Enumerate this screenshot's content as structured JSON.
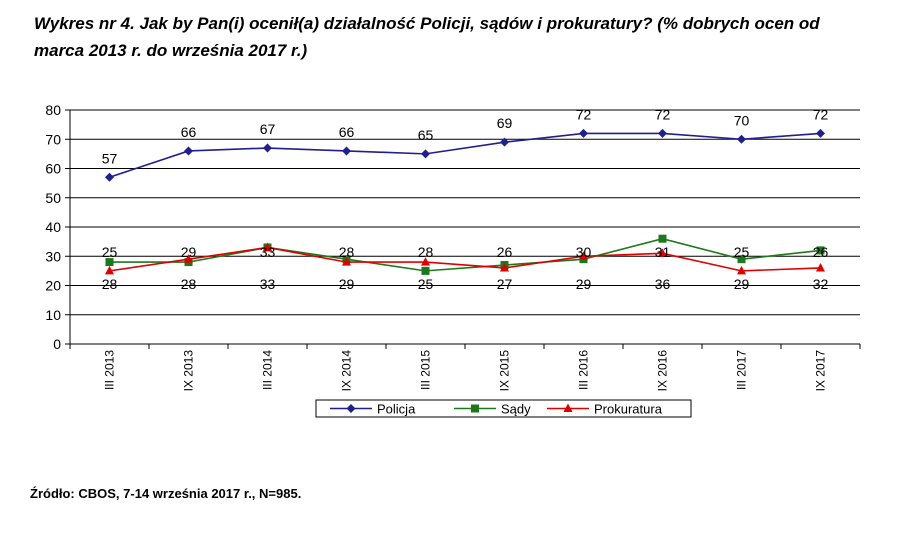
{
  "title": "Wykres nr 4. Jak by Pan(i) ocenił(a) działalność Policji, sądów i prokuratury? (% dobrych ocen od marca 2013  r. do września 2017 r.)",
  "source": "Źródło: CBOS, 7-14 września 2017 r., N=985.",
  "chart_data": {
    "type": "line",
    "categories": [
      "III 2013",
      "IX 2013",
      "III 2014",
      "IX 2014",
      "III 2015",
      "IX 2015",
      "III 2016",
      "IX 2016",
      "III 2017",
      "IX 2017"
    ],
    "ylim": [
      0,
      80
    ],
    "yticks": [
      0,
      10,
      20,
      30,
      40,
      50,
      60,
      70,
      80
    ],
    "grid": true,
    "legend_position": "bottom",
    "series": [
      {
        "name": "Policja",
        "color": "#1f1f8f",
        "marker": "diamond",
        "values": [
          57,
          66,
          67,
          66,
          65,
          69,
          72,
          72,
          70,
          72
        ]
      },
      {
        "name": "Sądy",
        "color": "#1a7a1a",
        "marker": "square",
        "values": [
          28,
          28,
          33,
          29,
          25,
          27,
          29,
          36,
          29,
          32
        ]
      },
      {
        "name": "Prokuratura",
        "color": "#e00000",
        "marker": "triangle",
        "values": [
          25,
          29,
          33,
          28,
          28,
          26,
          30,
          31,
          25,
          26
        ]
      }
    ],
    "data_labels": {
      "Policja": [
        "57",
        "66",
        "67",
        "66",
        "65",
        "69",
        "72",
        "72",
        "70",
        "72"
      ],
      "upper": [
        "25",
        "29",
        "33",
        "28",
        "28",
        "26",
        "30",
        "31",
        "25",
        "26"
      ],
      "lower": [
        "28",
        "28",
        "33",
        "29",
        "25",
        "27",
        "29",
        "36",
        "29",
        "32"
      ]
    }
  }
}
